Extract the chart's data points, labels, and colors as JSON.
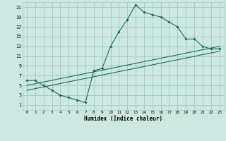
{
  "xlabel": "Humidex (Indice chaleur)",
  "bg_color": "#cce8e0",
  "grid_color": "#a0c8c0",
  "line_color": "#1a6b5a",
  "xlim": [
    -0.5,
    23.5
  ],
  "ylim": [
    0,
    22
  ],
  "yticks": [
    1,
    3,
    5,
    7,
    9,
    11,
    13,
    15,
    17,
    19,
    21
  ],
  "xticks": [
    0,
    1,
    2,
    3,
    4,
    5,
    6,
    7,
    8,
    9,
    10,
    11,
    12,
    13,
    14,
    15,
    16,
    17,
    18,
    19,
    20,
    21,
    22,
    23
  ],
  "line1_x": [
    0,
    1,
    2,
    3,
    4,
    5,
    6,
    7,
    8,
    9,
    10,
    11,
    12,
    13,
    14,
    15,
    16,
    17,
    18,
    19,
    20,
    21,
    22,
    23
  ],
  "line1_y": [
    6,
    6,
    5,
    4,
    3,
    2.5,
    2,
    1.5,
    8,
    8.5,
    13,
    16,
    18.5,
    21.5,
    20,
    19.5,
    19,
    18,
    17,
    14.5,
    14.5,
    13,
    12.5,
    12.5
  ],
  "line2_x": [
    0,
    23
  ],
  "line2_y": [
    5.0,
    13.0
  ],
  "line3_x": [
    0,
    23
  ],
  "line3_y": [
    4.0,
    12.0
  ]
}
